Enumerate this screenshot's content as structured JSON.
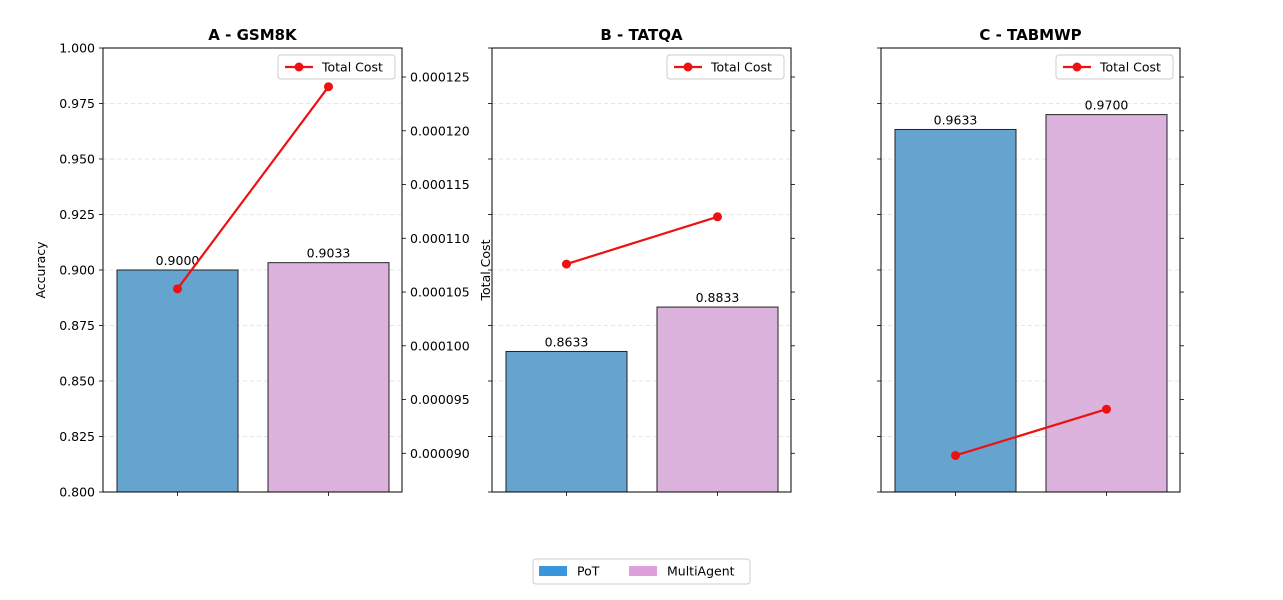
{
  "chart_data": [
    {
      "type": "bar",
      "title": "A - GSM8K",
      "ylabel": "Accuracy",
      "ylim": [
        0.8,
        1.0
      ],
      "yticks": [
        "0.800",
        "0.825",
        "0.850",
        "0.875",
        "0.900",
        "0.925",
        "0.950",
        "0.975",
        "1.000"
      ],
      "series": [
        {
          "name": "PoT",
          "values": [
            0.9
          ]
        },
        {
          "name": "MultiAgent",
          "values": [
            0.9033
          ]
        }
      ],
      "bar_labels": [
        "0.9000",
        "0.9033"
      ],
      "cost": {
        "name": "Total Cost",
        "ylabel": "",
        "values": [
          0.0001053,
          0.0001241
        ],
        "ylim": [
          8.64e-05,
          0.0001277
        ],
        "yticks": [
          "0.000090",
          "0.000095",
          "0.000100",
          "0.000105",
          "0.000110",
          "0.000115",
          "0.000120",
          "0.000125"
        ]
      },
      "grid": true,
      "legend_position": "top-right"
    },
    {
      "type": "bar",
      "title": "B - TATQA",
      "ylabel": "Total Cost",
      "ylim": [
        0.8,
        1.0
      ],
      "yticks": [],
      "series": [
        {
          "name": "PoT",
          "values": [
            0.8633
          ]
        },
        {
          "name": "MultiAgent",
          "values": [
            0.8833
          ]
        }
      ],
      "bar_labels": [
        "0.8633",
        "0.8833"
      ],
      "cost": {
        "name": "Total Cost",
        "values": [
          0.0001076,
          0.000112
        ],
        "ylim": [
          8.64e-05,
          0.0001277
        ],
        "yticks": []
      },
      "grid": true,
      "legend_position": "top-right"
    },
    {
      "type": "bar",
      "title": "C - TABMWP",
      "ylabel": "",
      "ylim": [
        0.8,
        1.0
      ],
      "yticks": [],
      "series": [
        {
          "name": "PoT",
          "values": [
            0.9633
          ]
        },
        {
          "name": "MultiAgent",
          "values": [
            0.97
          ]
        }
      ],
      "bar_labels": [
        "0.9633",
        "0.9700"
      ],
      "cost": {
        "name": "Total Cost",
        "values": [
          8.98e-05,
          9.41e-05
        ],
        "ylim": [
          8.64e-05,
          0.0001277
        ],
        "yticks": []
      },
      "grid": true,
      "legend_position": "top-right"
    }
  ],
  "legend": {
    "items": [
      {
        "label": "PoT",
        "color": "#3a96dc"
      },
      {
        "label": "MultiAgent",
        "color": "#dda0dd"
      }
    ]
  },
  "colors": {
    "pot_bar": "#64a4cf",
    "multiagent_bar": "#dbb3dd",
    "cost_line": "#ee1111",
    "grid": "#dddddd"
  }
}
